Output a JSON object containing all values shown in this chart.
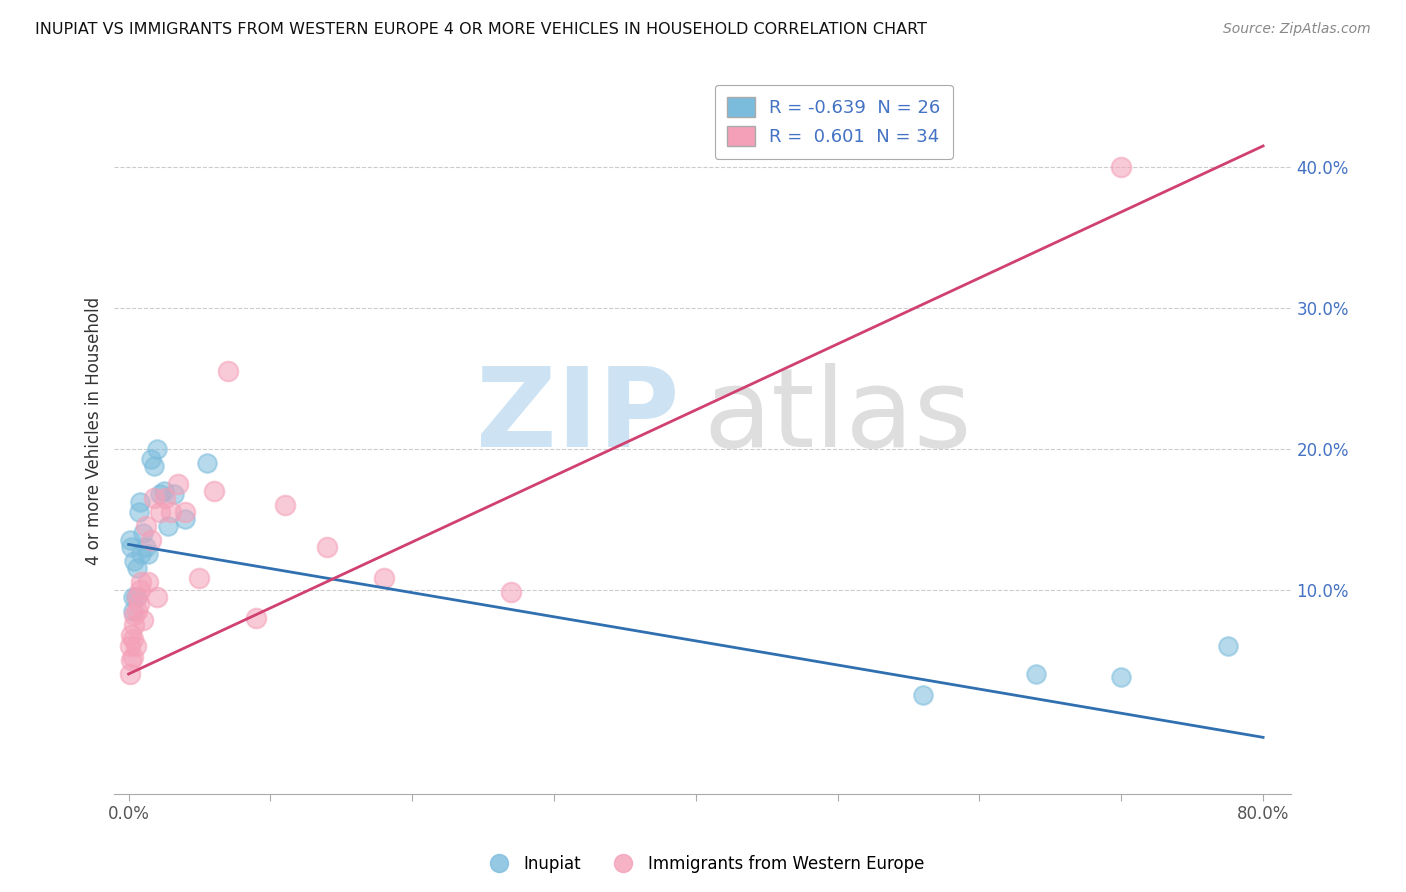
{
  "title": "INUPIAT VS IMMIGRANTS FROM WESTERN EUROPE 4 OR MORE VEHICLES IN HOUSEHOLD CORRELATION CHART",
  "source": "Source: ZipAtlas.com",
  "ylabel": "4 or more Vehicles in Household",
  "legend_label_1": "Inupiat",
  "legend_label_2": "Immigrants from Western Europe",
  "r_inupiat": -0.639,
  "n_inupiat": 26,
  "r_immigrants": 0.601,
  "n_immigrants": 34,
  "blue_color": "#7bbcdc",
  "pink_color": "#f4a0b8",
  "blue_line_color": "#3070b0",
  "pink_line_color": "#d04070",
  "xlim": [
    -0.01,
    0.82
  ],
  "ylim": [
    -0.045,
    0.47
  ],
  "blue_line_x0": 0.0,
  "blue_line_y0": 0.132,
  "blue_line_x1": 0.8,
  "blue_line_y1": -0.005,
  "pink_line_x0": 0.0,
  "pink_line_y0": 0.04,
  "pink_line_x1": 0.8,
  "pink_line_y1": 0.415,
  "inupiat_x": [
    0.001,
    0.002,
    0.003,
    0.003,
    0.004,
    0.005,
    0.006,
    0.007,
    0.008,
    0.009,
    0.01,
    0.012,
    0.014,
    0.016,
    0.018,
    0.02,
    0.022,
    0.025,
    0.028,
    0.032,
    0.04,
    0.055,
    0.56,
    0.64,
    0.7,
    0.775
  ],
  "inupiat_y": [
    0.135,
    0.13,
    0.085,
    0.095,
    0.12,
    0.095,
    0.115,
    0.155,
    0.162,
    0.125,
    0.14,
    0.13,
    0.125,
    0.193,
    0.188,
    0.2,
    0.168,
    0.17,
    0.145,
    0.168,
    0.15,
    0.19,
    0.025,
    0.04,
    0.038,
    0.06
  ],
  "immigrants_x": [
    0.001,
    0.001,
    0.002,
    0.002,
    0.003,
    0.003,
    0.004,
    0.004,
    0.005,
    0.006,
    0.006,
    0.007,
    0.008,
    0.009,
    0.01,
    0.012,
    0.014,
    0.016,
    0.018,
    0.02,
    0.022,
    0.026,
    0.03,
    0.035,
    0.04,
    0.05,
    0.06,
    0.07,
    0.09,
    0.11,
    0.14,
    0.18,
    0.27,
    0.7
  ],
  "immigrants_y": [
    0.04,
    0.06,
    0.05,
    0.068,
    0.052,
    0.065,
    0.075,
    0.082,
    0.06,
    0.085,
    0.095,
    0.09,
    0.1,
    0.105,
    0.078,
    0.145,
    0.105,
    0.135,
    0.165,
    0.095,
    0.155,
    0.165,
    0.155,
    0.175,
    0.155,
    0.108,
    0.17,
    0.255,
    0.08,
    0.16,
    0.13,
    0.108,
    0.098,
    0.4
  ]
}
